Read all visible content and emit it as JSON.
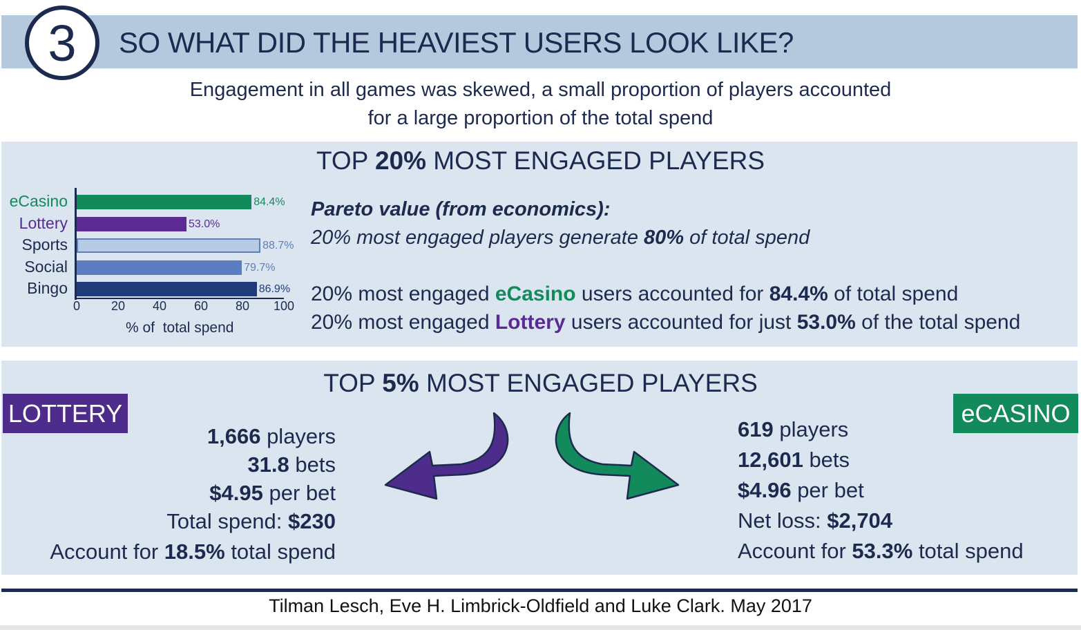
{
  "header": {
    "badge": "3",
    "title": "SO WHAT DID THE HEAVIEST USERS LOOK LIKE?",
    "subtitle_line1": "Engagement in all games was skewed, a small proportion of players accounted",
    "subtitle_line2": "for a large proportion of the total spend"
  },
  "top20": {
    "title_pre": "TOP ",
    "title_bold": "20%",
    "title_post": " MOST ENGAGED PLAYERS",
    "pareto_heading": "Pareto value (from economics):",
    "pareto_line_pre": "20% most engaged players generate ",
    "pareto_line_bold": "80%",
    "pareto_line_post": " of total spend",
    "ecasino_stmt": {
      "pre": "20% most engaged ",
      "game": "eCasino",
      "mid": " users accounted for ",
      "value": "84.4%",
      "post": " of total spend"
    },
    "lottery_stmt": {
      "pre": "20% most engaged ",
      "game": "Lottery",
      "mid": " users accounted for just ",
      "value": "53.0%",
      "post": " of the total spend"
    }
  },
  "chart_data": {
    "type": "bar",
    "orientation": "horizontal",
    "categories": [
      "eCasino",
      "Lottery",
      "Sports",
      "Social",
      "Bingo"
    ],
    "values": [
      84.4,
      53.0,
      88.7,
      79.7,
      86.9
    ],
    "value_labels": [
      "84.4%",
      "53.0%",
      "88.7%",
      "79.7%",
      "86.9%"
    ],
    "colors": [
      "#138a5c",
      "#5b2a92",
      "#b7cce3",
      "#5b7ec1",
      "#1f3b7a"
    ],
    "label_colors": [
      "#138a5c",
      "#5b2a92",
      "#1b2a4e",
      "#1b2a4e",
      "#1b2a4e"
    ],
    "value_label_colors": [
      "#138a5c",
      "#5b2a92",
      "#5b7ec1",
      "#5b7ec1",
      "#1f3b7a"
    ],
    "xlabel": "% of  total spend",
    "xlim": [
      0,
      100
    ],
    "xticks": [
      "0",
      "20",
      "40",
      "60",
      "80",
      "100"
    ],
    "grid": false
  },
  "top5": {
    "title_pre": "TOP ",
    "title_bold": "5%",
    "title_post": " MOST ENGAGED PLAYERS",
    "lottery": {
      "tag": "LOTTERY",
      "color": "#4e2c8c",
      "lines": [
        {
          "bold": "1,666",
          "text": " players"
        },
        {
          "bold": "31.8",
          "text": " bets"
        },
        {
          "bold": "$4.95",
          "text": " per bet"
        },
        {
          "pre": "Total spend: ",
          "bold": "$230"
        },
        {
          "pre": "Account for ",
          "bold": "18.5%",
          "text": " total spend"
        }
      ]
    },
    "ecasino": {
      "tag": "eCASINO",
      "color": "#138a5c",
      "lines": [
        {
          "bold": "619",
          "text": " players"
        },
        {
          "bold": "12,601",
          "text": " bets"
        },
        {
          "bold": "$4.96",
          "text": " per bet"
        },
        {
          "pre": "Net loss: ",
          "bold": "$2,704"
        },
        {
          "pre": "Account for ",
          "bold": "53.3%",
          "text": " total spend"
        }
      ]
    }
  },
  "footer": {
    "credit": "Tilman Lesch, Eve H. Limbrick-Oldfield and Luke Clark. May 2017"
  },
  "icons": [
    "circle-number-badge",
    "curved-arrow-left-icon",
    "curved-arrow-right-icon"
  ]
}
